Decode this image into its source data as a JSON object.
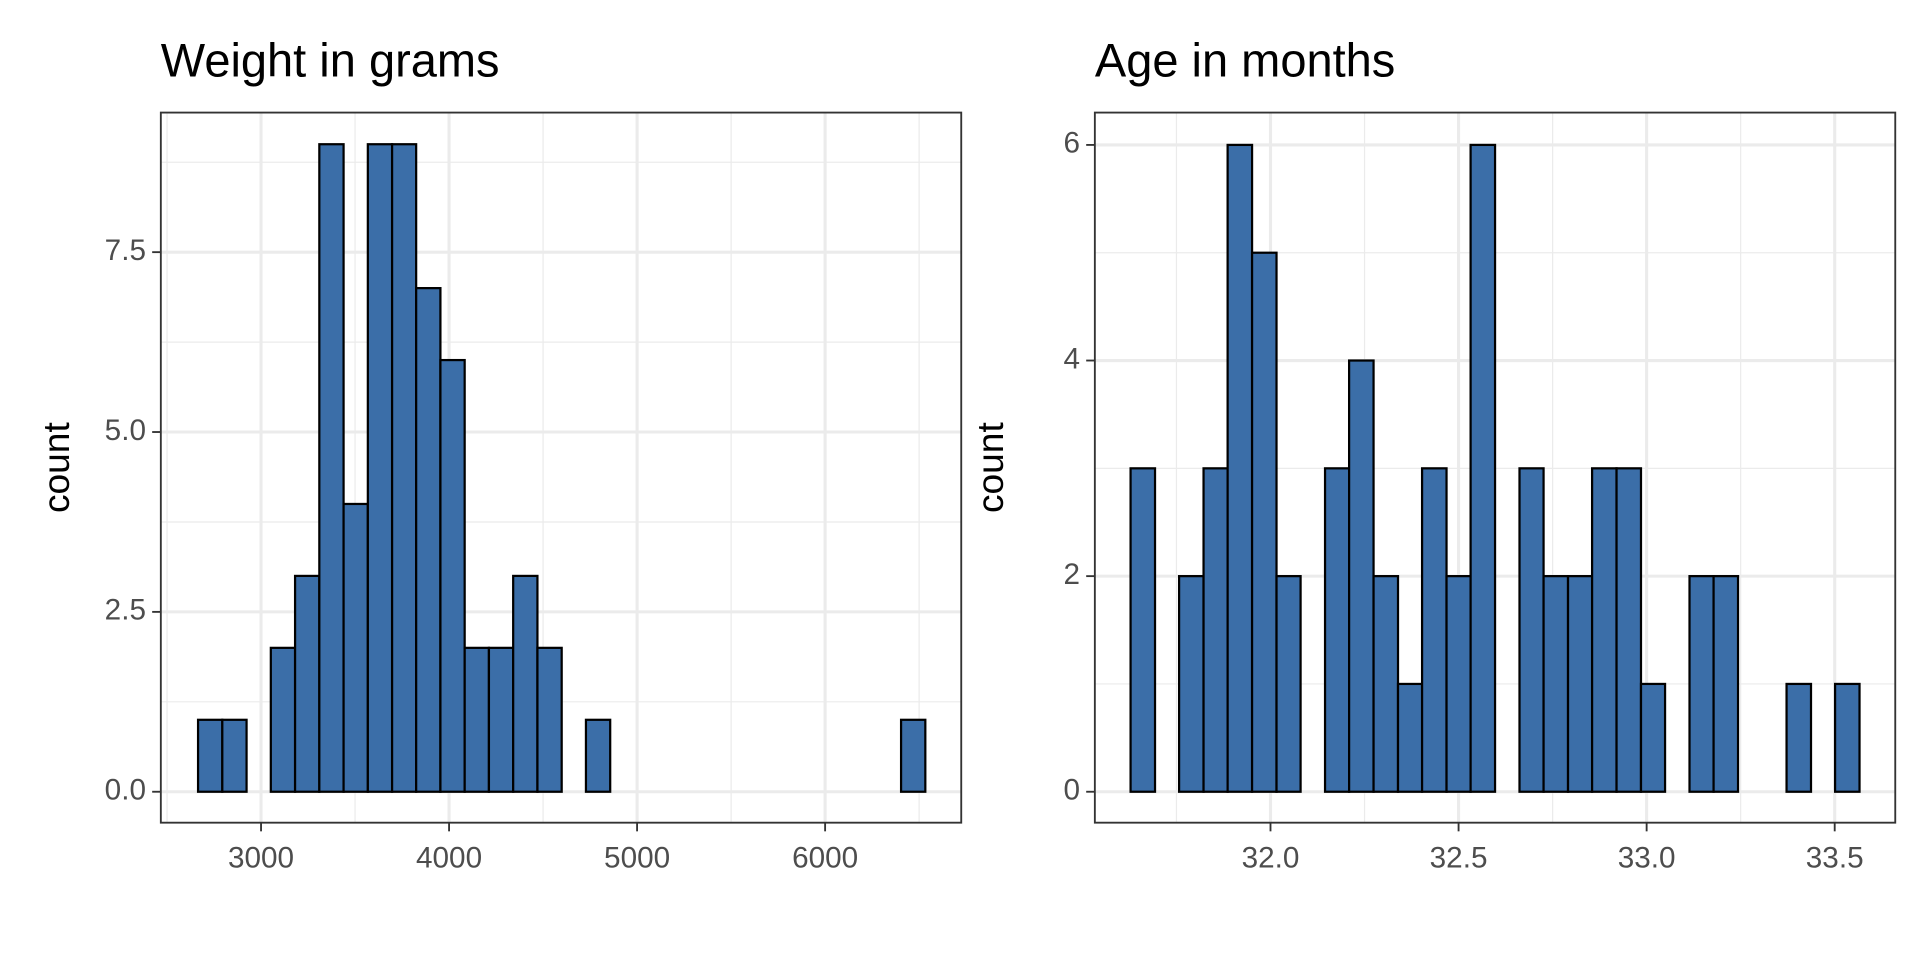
{
  "chart_data": [
    {
      "type": "histogram",
      "title": "Weight in grams",
      "ylabel": "count",
      "bins": [
        2665,
        2794,
        2923,
        3052,
        3181,
        3310,
        3439,
        3568,
        3697,
        3825,
        3954,
        4083,
        4212,
        4341,
        4470,
        4599,
        4728,
        4857,
        4986,
        5115,
        5244,
        5373,
        5502,
        5631,
        5760,
        5889,
        6017,
        6146,
        6275,
        6404,
        6533
      ],
      "values": [
        1,
        1,
        0,
        2,
        3,
        9,
        4,
        9,
        9,
        7,
        6,
        2,
        2,
        3,
        2,
        0,
        1,
        0,
        0,
        0,
        0,
        0,
        0,
        0,
        0,
        0,
        0,
        0,
        0,
        1
      ],
      "color": "#3b6ea8",
      "xlim": [
        2467,
        6724
      ],
      "xticks": [
        3000,
        4000,
        5000,
        6000
      ],
      "ylim": [
        -0.43,
        9.44
      ],
      "yticks": [
        {
          "value": 0,
          "label": "0.0"
        },
        2.5,
        {
          "value": 5,
          "label": "5.0"
        },
        7.5
      ],
      "grid": true
    },
    {
      "type": "histogram",
      "title": "Age in months",
      "ylabel": "count",
      "bins": [
        31.628,
        31.693,
        31.757,
        31.822,
        31.886,
        31.951,
        32.016,
        32.08,
        32.145,
        32.209,
        32.274,
        32.339,
        32.403,
        32.468,
        32.532,
        32.597,
        32.662,
        32.726,
        32.791,
        32.855,
        32.92,
        32.985,
        33.049,
        33.114,
        33.178,
        33.243,
        33.308,
        33.372,
        33.437,
        33.501,
        33.566
      ],
      "values": [
        3,
        0,
        2,
        3,
        6,
        5,
        2,
        0,
        3,
        4,
        2,
        1,
        3,
        2,
        6,
        0,
        3,
        2,
        2,
        3,
        3,
        1,
        0,
        2,
        2,
        0,
        0,
        1,
        0,
        1
      ],
      "color": "#3b6ea8",
      "xlim": [
        31.533,
        33.661
      ],
      "xticks": [
        {
          "value": 32,
          "label": "32.0"
        },
        32.5,
        {
          "value": 33,
          "label": "33.0"
        },
        33.5
      ],
      "ylim": [
        -0.287,
        6.3
      ],
      "yticks": [
        0,
        2,
        4,
        6
      ],
      "grid": true
    }
  ]
}
